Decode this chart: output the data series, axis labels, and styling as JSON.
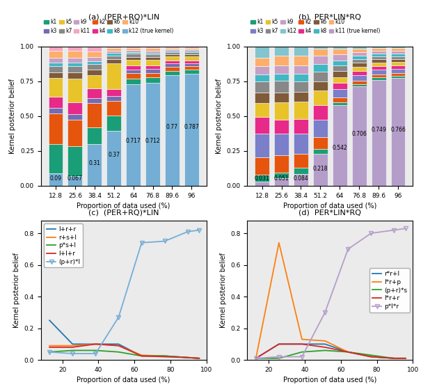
{
  "title_a": "(a)  (PER+RQ)*LIN",
  "title_b": "(b)  PER*LIN*RQ",
  "title_c": "(c)  (PER+RQ)*LIN",
  "title_d": "(d)  PER*LIN*RQ",
  "xlabel": "Proportion of data used (%)",
  "ylabel": "Kernel posterior belief",
  "x_tick_labels": [
    "12.8",
    "25.6",
    "38.4",
    "51.2",
    "64",
    "76.8",
    "89.6",
    "96"
  ],
  "colors_a": [
    "#1a9e77",
    "#e6550d",
    "#756bb1",
    "#e7298a",
    "#e8c32a",
    "#7f5b3a",
    "#888888",
    "#41b7c4",
    "#c6a0c6",
    "#fdae6b",
    "#f4a6c0",
    "#74aed4"
  ],
  "legend_labels_a": [
    "k1",
    "k2",
    "k3",
    "k4",
    "k5",
    "k6",
    "k7",
    "k8",
    "k9",
    "k10",
    "k11",
    "k12 (true kernel)"
  ],
  "colors_b": [
    "#1a9e77",
    "#e6550d",
    "#7b7ec8",
    "#e7298a",
    "#e8c32a",
    "#7f5b3a",
    "#888888",
    "#41b7c4",
    "#c6a0c6",
    "#fdae6b",
    "#84c4ce",
    "#b59dca"
  ],
  "legend_labels_b": [
    "k1",
    "k2",
    "k3",
    "k4",
    "k5",
    "k6",
    "k7",
    "k8",
    "k9",
    "k10",
    "k12",
    "k11 (true kernel)"
  ],
  "bar_a_k12": [
    0.09,
    0.067,
    0.31,
    0.37,
    0.717,
    0.712,
    0.77,
    0.787
  ],
  "bar_a_rest": [
    [
      0.21,
      0.21,
      0.12,
      0.1,
      0.04,
      0.04,
      0.03,
      0.03
    ],
    [
      0.22,
      0.19,
      0.18,
      0.1,
      0.04,
      0.03,
      0.03,
      0.025
    ],
    [
      0.04,
      0.04,
      0.04,
      0.03,
      0.025,
      0.025,
      0.02,
      0.02
    ],
    [
      0.08,
      0.08,
      0.07,
      0.05,
      0.03,
      0.025,
      0.02,
      0.02
    ],
    [
      0.14,
      0.17,
      0.1,
      0.17,
      0.04,
      0.04,
      0.03,
      0.03
    ],
    [
      0.04,
      0.04,
      0.04,
      0.03,
      0.02,
      0.02,
      0.015,
      0.015
    ],
    [
      0.045,
      0.045,
      0.04,
      0.025,
      0.02,
      0.02,
      0.015,
      0.015
    ],
    [
      0.025,
      0.025,
      0.02,
      0.015,
      0.01,
      0.01,
      0.01,
      0.01
    ],
    [
      0.035,
      0.035,
      0.03,
      0.015,
      0.015,
      0.015,
      0.01,
      0.01
    ],
    [
      0.05,
      0.05,
      0.04,
      0.02,
      0.015,
      0.015,
      0.01,
      0.01
    ],
    [
      0.03,
      0.03,
      0.04,
      0.01,
      0.013,
      0.013,
      0.01,
      0.01
    ]
  ],
  "bar_b_k11": [
    0.031,
    0.051,
    0.084,
    0.218,
    0.542,
    0.706,
    0.749,
    0.766
  ],
  "bar_b_rest": [
    [
      0.05,
      0.04,
      0.04,
      0.035,
      0.02,
      0.015,
      0.015,
      0.015
    ],
    [
      0.12,
      0.12,
      0.1,
      0.08,
      0.03,
      0.02,
      0.02,
      0.02
    ],
    [
      0.17,
      0.15,
      0.14,
      0.12,
      0.06,
      0.04,
      0.035,
      0.03
    ],
    [
      0.12,
      0.1,
      0.1,
      0.1,
      0.04,
      0.03,
      0.025,
      0.025
    ],
    [
      0.1,
      0.12,
      0.12,
      0.1,
      0.04,
      0.03,
      0.025,
      0.025
    ],
    [
      0.07,
      0.07,
      0.07,
      0.065,
      0.04,
      0.03,
      0.025,
      0.02
    ],
    [
      0.08,
      0.08,
      0.07,
      0.065,
      0.035,
      0.025,
      0.02,
      0.02
    ],
    [
      0.05,
      0.05,
      0.055,
      0.055,
      0.035,
      0.025,
      0.02,
      0.02
    ],
    [
      0.06,
      0.06,
      0.06,
      0.055,
      0.04,
      0.025,
      0.02,
      0.02
    ],
    [
      0.06,
      0.065,
      0.065,
      0.05,
      0.04,
      0.025,
      0.02,
      0.02
    ],
    [
      0.08,
      0.065,
      0.065,
      0.015,
      0.015,
      0.015,
      0.01,
      0.01
    ]
  ],
  "annot_a": [
    [
      "0.09",
      0,
      0.03
    ],
    [
      "0.067",
      1,
      0.03
    ],
    [
      "0.31",
      2,
      0.14
    ],
    [
      "0.37",
      3,
      0.2
    ],
    [
      "0.717",
      4,
      0.3
    ],
    [
      "0.712",
      5,
      0.3
    ],
    [
      "0.77",
      6,
      0.4
    ],
    [
      "0.787",
      7,
      0.4
    ]
  ],
  "annot_b": [
    [
      "0.031",
      0,
      0.03
    ],
    [
      "0.051",
      1,
      0.03
    ],
    [
      "0.084",
      2,
      0.03
    ],
    [
      "0.218",
      3,
      0.1
    ],
    [
      "0.542",
      4,
      0.25
    ],
    [
      "0.706",
      5,
      0.35
    ],
    [
      "0.749",
      6,
      0.38
    ],
    [
      "0.766",
      7,
      0.38
    ]
  ],
  "line_x": [
    12.8,
    25.6,
    38.4,
    51.2,
    64,
    76.8,
    89.6,
    96
  ],
  "line_labels_c": [
    "l+r+r",
    "r+s+l",
    "p*s+l",
    "l+l+r",
    "(p+r)*l"
  ],
  "line_data_c": [
    [
      0.25,
      0.1,
      0.1,
      0.1,
      0.025,
      0.025,
      0.015,
      0.01
    ],
    [
      0.09,
      0.09,
      0.1,
      0.09,
      0.03,
      0.025,
      0.015,
      0.01
    ],
    [
      0.05,
      0.06,
      0.06,
      0.05,
      0.025,
      0.025,
      0.015,
      0.01
    ],
    [
      0.08,
      0.08,
      0.1,
      0.09,
      0.025,
      0.02,
      0.015,
      0.01
    ],
    [
      0.05,
      0.04,
      0.04,
      0.27,
      0.74,
      0.75,
      0.81,
      0.82
    ]
  ],
  "line_colors_c": [
    "#1f77b4",
    "#ff7f0e",
    "#2ca02c",
    "#d62728",
    "#74aed4"
  ],
  "line_labels_d": [
    "r*r+l",
    "l*r+p",
    "(p+r)*s",
    "l*r+r",
    "p*l*r"
  ],
  "line_data_d": [
    [
      0.01,
      0.1,
      0.1,
      0.1,
      0.05,
      0.02,
      0.01,
      0.01
    ],
    [
      0.01,
      0.74,
      0.13,
      0.12,
      0.05,
      0.02,
      0.01,
      0.01
    ],
    [
      0.01,
      0.01,
      0.05,
      0.06,
      0.05,
      0.03,
      0.01,
      0.01
    ],
    [
      0.01,
      0.1,
      0.1,
      0.08,
      0.05,
      0.02,
      0.01,
      0.01
    ],
    [
      0.01,
      0.02,
      0.02,
      0.3,
      0.7,
      0.8,
      0.82,
      0.83
    ]
  ],
  "line_colors_d": [
    "#1f77b4",
    "#ff7f0e",
    "#2ca02c",
    "#d62728",
    "#b59dca"
  ],
  "bg_color": "#ebebeb"
}
